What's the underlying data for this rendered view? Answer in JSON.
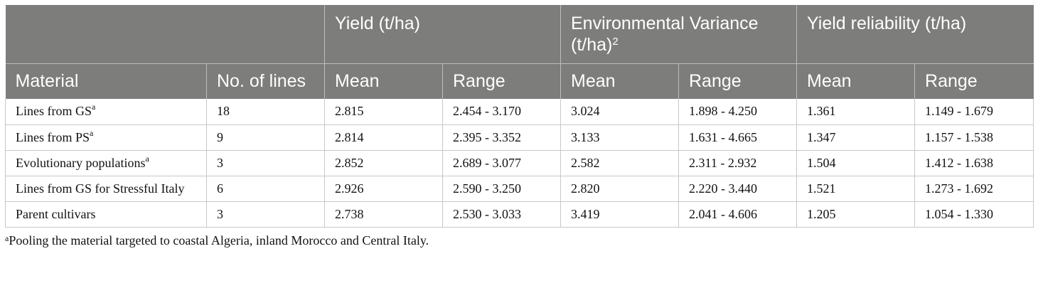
{
  "header": {
    "groups": {
      "yield": "Yield (t/ha)",
      "env_variance": "Environmental Variance (t/ha)",
      "env_variance_sup": "2",
      "reliability": "Yield reliability (t/ha)"
    },
    "sub": {
      "material": "Material",
      "lines": "No. of lines",
      "yield_mean": "Mean",
      "yield_range": "Range",
      "env_mean": "Mean",
      "env_range": "Range",
      "rel_mean": "Mean",
      "rel_range": "Range"
    }
  },
  "rows": [
    {
      "material": "Lines from GS",
      "sup": "a",
      "lines": "18",
      "yield_mean": "2.815",
      "yield_range": "2.454 - 3.170",
      "env_mean": "3.024",
      "env_range": "1.898 - 4.250",
      "rel_mean": "1.361",
      "rel_range": "1.149 - 1.679"
    },
    {
      "material": "Lines from PS",
      "sup": "a",
      "lines": "9",
      "yield_mean": "2.814",
      "yield_range": "2.395 - 3.352",
      "env_mean": "3.133",
      "env_range": "1.631 - 4.665",
      "rel_mean": "1.347",
      "rel_range": "1.157 - 1.538"
    },
    {
      "material": "Evolutionary populations",
      "sup": "a",
      "lines": "3",
      "yield_mean": "2.852",
      "yield_range": "2.689 - 3.077",
      "env_mean": "2.582",
      "env_range": "2.311 - 2.932",
      "rel_mean": "1.504",
      "rel_range": "1.412 - 1.638"
    },
    {
      "material": "Lines from GS for Stressful Italy",
      "sup": "",
      "lines": "6",
      "yield_mean": "2.926",
      "yield_range": "2.590 - 3.250",
      "env_mean": "2.820",
      "env_range": "2.220 - 3.440",
      "rel_mean": "1.521",
      "rel_range": "1.273 - 1.692"
    },
    {
      "material": "Parent cultivars",
      "sup": "",
      "lines": "3",
      "yield_mean": "2.738",
      "yield_range": "2.530 - 3.033",
      "env_mean": "3.419",
      "env_range": "2.041 - 4.606",
      "rel_mean": "1.205",
      "rel_range": "1.054 - 1.330"
    }
  ],
  "footnote": {
    "marker": "a",
    "text": "Pooling the material targeted to coastal Algeria, inland Morocco and Central Italy."
  },
  "colors": {
    "header_bg": "#7d7d7b",
    "header_text": "#ffffff",
    "grid": "#c8c8c8"
  }
}
